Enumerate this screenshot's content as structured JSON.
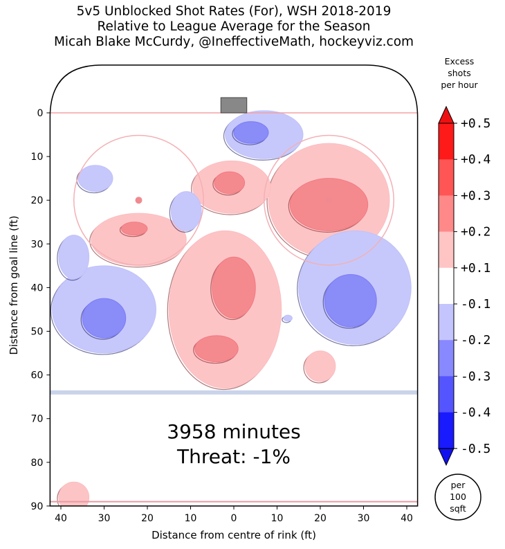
{
  "title_lines": [
    "5v5 Unblocked Shot Rates (For), WSH 2018-2019",
    "Relative to League Average for the Season",
    "Micah Blake McCurdy, @IneffectiveMath, hockeyviz.com"
  ],
  "chart_data": {
    "type": "heatmap",
    "xlabel": "Distance from centre of rink (ft)",
    "ylabel": "Distance from goal line (ft)",
    "xlim": [
      -42.5,
      42.5
    ],
    "ylim": [
      0,
      90
    ],
    "x_ticks": [
      40,
      30,
      20,
      10,
      0,
      10,
      20,
      30,
      40
    ],
    "y_ticks": [
      0,
      10,
      20,
      30,
      40,
      50,
      60,
      70,
      80,
      90
    ],
    "annotation": {
      "minutes": "3958 minutes",
      "threat": "Threat: -1%"
    },
    "colorbar": {
      "title_lines": [
        "Excess",
        "shots",
        "per hour"
      ],
      "labels": [
        "+0.5",
        "+0.4",
        "+0.3",
        "+0.2",
        "+0.1",
        "-0.1",
        "-0.2",
        "-0.3",
        "-0.4",
        "-0.5"
      ],
      "colors": [
        "#ff1a1a",
        "#ff5555",
        "#ff8888",
        "#ffc4c4",
        "#ffffff",
        "#c4c4ff",
        "#8888ff",
        "#5555ff",
        "#1a1aff"
      ]
    },
    "unit_badge": [
      "per",
      "100",
      "sqft"
    ],
    "regions": [
      {
        "level": -0.2,
        "x": 7,
        "y": 5,
        "rx": 9,
        "ry": 5.5
      },
      {
        "level": -0.3,
        "x": 4,
        "y": 4.5,
        "rx": 4,
        "ry": 2.5
      },
      {
        "level": 0.2,
        "x": 22,
        "y": 20,
        "rx": 14,
        "ry": 13
      },
      {
        "level": 0.3,
        "x": 22,
        "y": 21,
        "rx": 9,
        "ry": 6
      },
      {
        "level": 0.2,
        "x": -22,
        "y": 29,
        "rx": 11,
        "ry": 6
      },
      {
        "level": 0.3,
        "x": -23,
        "y": 26.5,
        "rx": 3,
        "ry": 1.5
      },
      {
        "level": 0.2,
        "x": -0.5,
        "y": 17,
        "rx": 9,
        "ry": 6
      },
      {
        "level": 0.3,
        "x": -1,
        "y": 16,
        "rx": 3.5,
        "ry": 2.5
      },
      {
        "level": -0.2,
        "x": -32,
        "y": 15,
        "rx": 4,
        "ry": 3
      },
      {
        "level": -0.2,
        "x": -11,
        "y": 22.5,
        "rx": 3.5,
        "ry": 4.5
      },
      {
        "level": -0.2,
        "x": 28,
        "y": 40,
        "rx": 13,
        "ry": 13
      },
      {
        "level": -0.3,
        "x": 27,
        "y": 43,
        "rx": 6,
        "ry": 6
      },
      {
        "level": -0.2,
        "x": -30,
        "y": 45,
        "rx": 12,
        "ry": 10
      },
      {
        "level": -0.3,
        "x": -30,
        "y": 47,
        "rx": 5,
        "ry": 4.5
      },
      {
        "level": 0.2,
        "x": -2,
        "y": 45,
        "rx": 13,
        "ry": 18
      },
      {
        "level": 0.3,
        "x": 0,
        "y": 40,
        "rx": 5,
        "ry": 7
      },
      {
        "level": 0.3,
        "x": -4,
        "y": 54,
        "rx": 5,
        "ry": 3
      },
      {
        "level": -0.2,
        "x": -37,
        "y": 33,
        "rx": 3.5,
        "ry": 5
      },
      {
        "level": 0.2,
        "x": 20,
        "y": 58,
        "rx": 3.5,
        "ry": 3.5
      },
      {
        "level": -0.2,
        "x": 12.5,
        "y": 47,
        "rx": 1,
        "ry": 0.7
      },
      {
        "level": 0.2,
        "x": -37,
        "y": 88,
        "rx": 3.5,
        "ry": 3.5
      }
    ]
  }
}
